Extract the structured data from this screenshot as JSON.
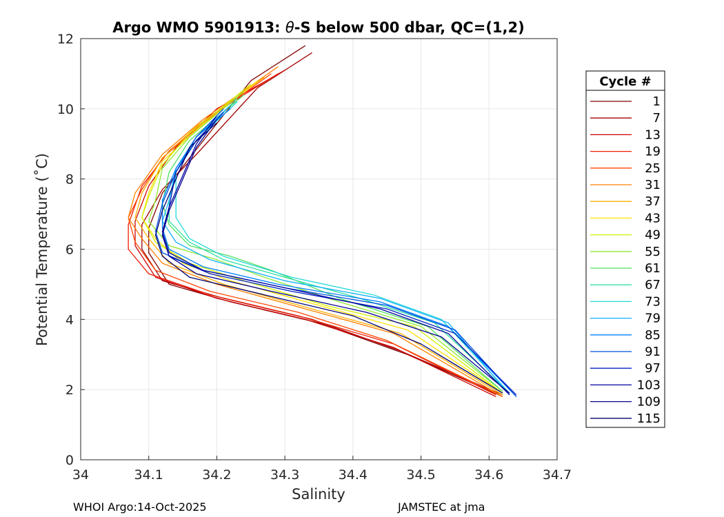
{
  "chart_data": {
    "type": "line",
    "title_prefix": "Argo WMO 5901913: ",
    "title_symbol": "θ",
    "title_suffix": "-S below 500 dbar,  QC=(1,2)",
    "xlabel": "Salinity",
    "ylabel": "Potential Temperature (˚C)",
    "xlim": [
      34.0,
      34.7
    ],
    "ylim": [
      0,
      12
    ],
    "xticks": [
      34.0,
      34.1,
      34.2,
      34.3,
      34.4,
      34.5,
      34.6,
      34.7
    ],
    "xtick_labels": [
      "34",
      "34.1",
      "34.2",
      "34.3",
      "34.4",
      "34.5",
      "34.6",
      "34.7"
    ],
    "yticks": [
      0,
      2,
      4,
      6,
      8,
      10,
      12
    ],
    "ytick_labels": [
      "0",
      "2",
      "4",
      "6",
      "8",
      "10",
      "12"
    ],
    "grid": true,
    "legend": {
      "title": "Cycle #",
      "position": "right",
      "entries": [
        {
          "label": "1",
          "color": "#7f0000"
        },
        {
          "label": "7",
          "color": "#a30000"
        },
        {
          "label": "13",
          "color": "#cc0000"
        },
        {
          "label": "19",
          "color": "#ee1a00"
        },
        {
          "label": "25",
          "color": "#ff4500"
        },
        {
          "label": "31",
          "color": "#ff7f00"
        },
        {
          "label": "37",
          "color": "#ffb000"
        },
        {
          "label": "43",
          "color": "#ffe000"
        },
        {
          "label": "49",
          "color": "#d0f000"
        },
        {
          "label": "55",
          "color": "#8fe830"
        },
        {
          "label": "61",
          "color": "#4fe060"
        },
        {
          "label": "67",
          "color": "#2fe0a0"
        },
        {
          "label": "73",
          "color": "#20d8d8"
        },
        {
          "label": "79",
          "color": "#10b0ff"
        },
        {
          "label": "85",
          "color": "#0080ff"
        },
        {
          "label": "91",
          "color": "#0050e0"
        },
        {
          "label": "97",
          "color": "#0020c0"
        },
        {
          "label": "103",
          "color": "#0000a0"
        },
        {
          "label": "109",
          "color": "#000090"
        },
        {
          "label": "115",
          "color": "#000070"
        }
      ]
    },
    "series": [
      {
        "name": "cycle 1",
        "color": "#7f0000",
        "points": [
          [
            34.33,
            11.8
          ],
          [
            34.25,
            10.8
          ],
          [
            34.16,
            8.6
          ],
          [
            34.12,
            7.6
          ],
          [
            34.1,
            6.6
          ],
          [
            34.1,
            5.9
          ],
          [
            34.13,
            5.0
          ],
          [
            34.22,
            4.5
          ],
          [
            34.35,
            3.9
          ],
          [
            34.48,
            3.0
          ],
          [
            34.62,
            1.8
          ]
        ]
      },
      {
        "name": "cycle 7",
        "color": "#a30000",
        "points": [
          [
            34.34,
            11.6
          ],
          [
            34.26,
            10.6
          ],
          [
            34.17,
            8.7
          ],
          [
            34.12,
            7.7
          ],
          [
            34.09,
            6.7
          ],
          [
            34.09,
            6.0
          ],
          [
            34.12,
            5.1
          ],
          [
            34.21,
            4.6
          ],
          [
            34.34,
            4.0
          ],
          [
            34.47,
            3.1
          ],
          [
            34.62,
            1.85
          ]
        ]
      },
      {
        "name": "cycle 13",
        "color": "#cc0000",
        "points": [
          [
            34.3,
            11.1
          ],
          [
            34.2,
            10.0
          ],
          [
            34.14,
            8.9
          ],
          [
            34.1,
            7.8
          ],
          [
            34.08,
            6.8
          ],
          [
            34.08,
            6.1
          ],
          [
            34.11,
            5.2
          ],
          [
            34.2,
            4.6
          ],
          [
            34.33,
            4.0
          ],
          [
            34.46,
            3.2
          ],
          [
            34.61,
            1.8
          ]
        ]
      },
      {
        "name": "cycle 19",
        "color": "#ee1a00",
        "points": [
          [
            34.29,
            11.0
          ],
          [
            34.19,
            9.8
          ],
          [
            34.13,
            8.8
          ],
          [
            34.09,
            7.8
          ],
          [
            34.07,
            6.7
          ],
          [
            34.07,
            6.0
          ],
          [
            34.1,
            5.3
          ],
          [
            34.19,
            4.7
          ],
          [
            34.32,
            4.1
          ],
          [
            34.46,
            3.3
          ],
          [
            34.61,
            1.85
          ]
        ]
      },
      {
        "name": "cycle 25",
        "color": "#ff4500",
        "points": [
          [
            34.28,
            11.0
          ],
          [
            34.18,
            9.6
          ],
          [
            34.12,
            8.6
          ],
          [
            34.09,
            7.7
          ],
          [
            34.07,
            6.9
          ],
          [
            34.08,
            6.2
          ],
          [
            34.11,
            5.4
          ],
          [
            34.19,
            4.8
          ],
          [
            34.32,
            4.2
          ],
          [
            34.45,
            3.4
          ],
          [
            34.62,
            1.8
          ]
        ]
      },
      {
        "name": "cycle 31",
        "color": "#ff7f00",
        "points": [
          [
            34.29,
            11.2
          ],
          [
            34.18,
            9.7
          ],
          [
            34.12,
            8.7
          ],
          [
            34.08,
            7.6
          ],
          [
            34.07,
            6.9
          ],
          [
            34.09,
            6.3
          ],
          [
            34.12,
            5.6
          ],
          [
            34.2,
            5.0
          ],
          [
            34.33,
            4.3
          ],
          [
            34.46,
            3.6
          ],
          [
            34.62,
            1.8
          ]
        ]
      },
      {
        "name": "cycle 37",
        "color": "#ffb000",
        "points": [
          [
            34.27,
            10.9
          ],
          [
            34.17,
            9.5
          ],
          [
            34.12,
            8.6
          ],
          [
            34.09,
            7.6
          ],
          [
            34.08,
            6.9
          ],
          [
            34.1,
            6.3
          ],
          [
            34.13,
            5.6
          ],
          [
            34.21,
            5.0
          ],
          [
            34.34,
            4.3
          ],
          [
            34.47,
            3.6
          ],
          [
            34.62,
            1.85
          ]
        ]
      },
      {
        "name": "cycle 43",
        "color": "#ffe000",
        "points": [
          [
            34.26,
            10.8
          ],
          [
            34.17,
            9.4
          ],
          [
            34.12,
            8.5
          ],
          [
            34.1,
            7.6
          ],
          [
            34.09,
            6.9
          ],
          [
            34.11,
            6.3
          ],
          [
            34.15,
            5.6
          ],
          [
            34.22,
            5.1
          ],
          [
            34.35,
            4.4
          ],
          [
            34.48,
            3.7
          ],
          [
            34.62,
            1.9
          ]
        ]
      },
      {
        "name": "cycle 49",
        "color": "#d0f000",
        "points": [
          [
            34.25,
            10.7
          ],
          [
            34.16,
            9.3
          ],
          [
            34.12,
            8.4
          ],
          [
            34.1,
            7.5
          ],
          [
            34.09,
            6.9
          ],
          [
            34.11,
            6.2
          ],
          [
            34.16,
            5.6
          ],
          [
            34.24,
            5.1
          ],
          [
            34.36,
            4.4
          ],
          [
            34.49,
            3.8
          ],
          [
            34.62,
            1.9
          ]
        ]
      },
      {
        "name": "cycle 55",
        "color": "#8fe830",
        "points": [
          [
            34.24,
            10.5
          ],
          [
            34.16,
            9.2
          ],
          [
            34.12,
            8.3
          ],
          [
            34.11,
            7.4
          ],
          [
            34.1,
            6.8
          ],
          [
            34.13,
            6.1
          ],
          [
            34.2,
            5.7
          ],
          [
            34.27,
            5.2
          ],
          [
            34.38,
            4.5
          ],
          [
            34.5,
            3.8
          ],
          [
            34.62,
            1.95
          ]
        ]
      },
      {
        "name": "cycle 61",
        "color": "#4fe060",
        "points": [
          [
            34.24,
            10.4
          ],
          [
            34.16,
            9.1
          ],
          [
            34.13,
            8.2
          ],
          [
            34.12,
            7.3
          ],
          [
            34.13,
            6.7
          ],
          [
            34.16,
            6.1
          ],
          [
            34.22,
            5.8
          ],
          [
            34.28,
            5.4
          ],
          [
            34.38,
            4.6
          ],
          [
            34.51,
            3.8
          ],
          [
            34.62,
            1.95
          ]
        ]
      },
      {
        "name": "cycle 67",
        "color": "#2fe0a0",
        "points": [
          [
            34.23,
            10.3
          ],
          [
            34.17,
            9.1
          ],
          [
            34.14,
            8.2
          ],
          [
            34.13,
            7.4
          ],
          [
            34.13,
            6.8
          ],
          [
            34.16,
            6.2
          ],
          [
            34.21,
            5.7
          ],
          [
            34.3,
            5.2
          ],
          [
            34.41,
            4.6
          ],
          [
            34.52,
            3.9
          ],
          [
            34.63,
            1.9
          ]
        ]
      },
      {
        "name": "cycle 73",
        "color": "#20d8d8",
        "points": [
          [
            34.23,
            10.2
          ],
          [
            34.17,
            9.1
          ],
          [
            34.14,
            8.3
          ],
          [
            34.14,
            7.5
          ],
          [
            34.14,
            6.9
          ],
          [
            34.16,
            6.3
          ],
          [
            34.21,
            5.8
          ],
          [
            34.31,
            5.2
          ],
          [
            34.43,
            4.7
          ],
          [
            34.53,
            4.0
          ],
          [
            34.63,
            1.9
          ]
        ]
      },
      {
        "name": "cycle 79",
        "color": "#10b0ff",
        "points": [
          [
            34.22,
            10.1
          ],
          [
            34.17,
            9.2
          ],
          [
            34.14,
            8.3
          ],
          [
            34.13,
            7.4
          ],
          [
            34.12,
            6.8
          ],
          [
            34.14,
            6.2
          ],
          [
            34.19,
            5.7
          ],
          [
            34.3,
            5.1
          ],
          [
            34.44,
            4.6
          ],
          [
            34.54,
            3.9
          ],
          [
            34.63,
            1.85
          ]
        ]
      },
      {
        "name": "cycle 85",
        "color": "#0080ff",
        "points": [
          [
            34.22,
            10.0
          ],
          [
            34.17,
            9.2
          ],
          [
            34.14,
            8.3
          ],
          [
            34.12,
            7.4
          ],
          [
            34.12,
            6.6
          ],
          [
            34.13,
            6.0
          ],
          [
            34.18,
            5.5
          ],
          [
            34.29,
            5.0
          ],
          [
            34.44,
            4.5
          ],
          [
            34.54,
            3.8
          ],
          [
            34.64,
            1.8
          ]
        ]
      },
      {
        "name": "cycle 91",
        "color": "#0050e0",
        "points": [
          [
            34.21,
            10.0
          ],
          [
            34.17,
            9.2
          ],
          [
            34.14,
            8.2
          ],
          [
            34.12,
            7.3
          ],
          [
            34.11,
            6.5
          ],
          [
            34.12,
            5.9
          ],
          [
            34.18,
            5.4
          ],
          [
            34.3,
            4.9
          ],
          [
            34.45,
            4.4
          ],
          [
            34.55,
            3.7
          ],
          [
            34.64,
            1.8
          ]
        ]
      },
      {
        "name": "cycle 97",
        "color": "#0020c0",
        "points": [
          [
            34.21,
            9.9
          ],
          [
            34.17,
            9.1
          ],
          [
            34.14,
            8.2
          ],
          [
            34.13,
            7.2
          ],
          [
            34.12,
            6.4
          ],
          [
            34.13,
            5.8
          ],
          [
            34.19,
            5.3
          ],
          [
            34.31,
            4.8
          ],
          [
            34.45,
            4.3
          ],
          [
            34.55,
            3.6
          ],
          [
            34.64,
            1.85
          ]
        ]
      },
      {
        "name": "cycle 103",
        "color": "#0000a0",
        "points": [
          [
            34.2,
            9.8
          ],
          [
            34.17,
            9.0
          ],
          [
            34.15,
            8.1
          ],
          [
            34.13,
            7.2
          ],
          [
            34.12,
            6.5
          ],
          [
            34.13,
            5.9
          ],
          [
            34.18,
            5.4
          ],
          [
            34.3,
            4.9
          ],
          [
            34.44,
            4.3
          ],
          [
            34.54,
            3.6
          ],
          [
            34.63,
            1.85
          ]
        ]
      },
      {
        "name": "cycle 109",
        "color": "#000090",
        "points": [
          [
            34.2,
            9.7
          ],
          [
            34.17,
            8.9
          ],
          [
            34.15,
            8.0
          ],
          [
            34.13,
            7.1
          ],
          [
            34.12,
            6.4
          ],
          [
            34.13,
            5.8
          ],
          [
            34.17,
            5.3
          ],
          [
            34.28,
            4.8
          ],
          [
            34.42,
            4.2
          ],
          [
            34.53,
            3.5
          ],
          [
            34.63,
            1.9
          ]
        ]
      },
      {
        "name": "cycle 115",
        "color": "#000070",
        "points": [
          [
            34.2,
            9.6
          ],
          [
            34.16,
            8.9
          ],
          [
            34.14,
            8.0
          ],
          [
            34.12,
            7.1
          ],
          [
            34.11,
            6.4
          ],
          [
            34.12,
            5.8
          ],
          [
            34.16,
            5.2
          ],
          [
            34.27,
            4.7
          ],
          [
            34.4,
            4.1
          ],
          [
            34.5,
            3.3
          ],
          [
            34.62,
            1.9
          ]
        ]
      }
    ]
  },
  "footer": {
    "left": "WHOI Argo:14-Oct-2025",
    "right": "JAMSTEC at jma"
  }
}
